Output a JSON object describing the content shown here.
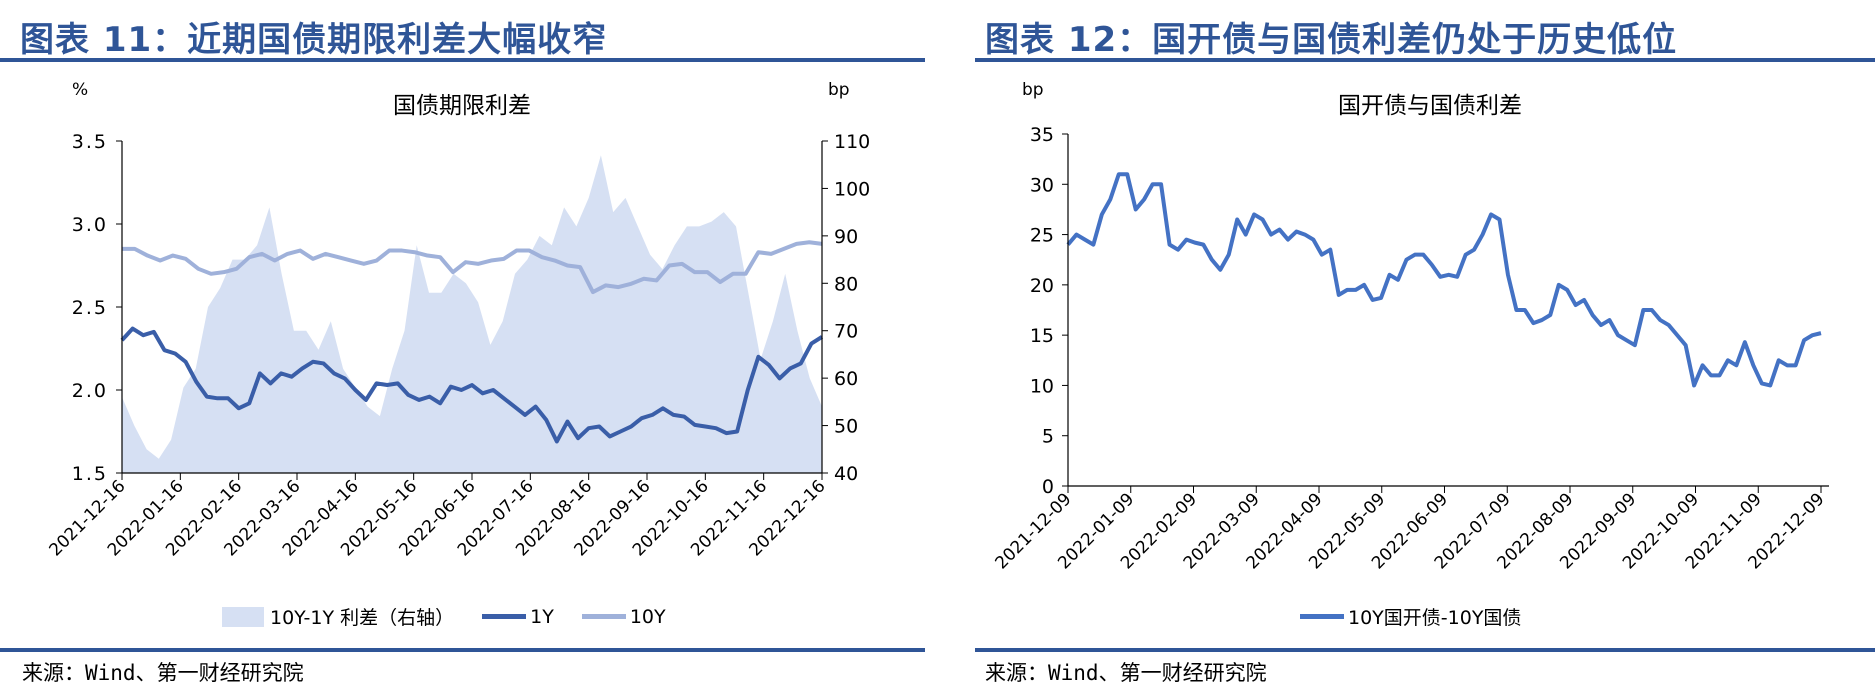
{
  "left": {
    "figure_title": "图表 11：近期国债期限利差大幅收窄",
    "source": "来源：Wind、第一财经研究院"
  },
  "right": {
    "figure_title": "图表 12：国开债与国债利差仍处于历史低位",
    "source": "来源：Wind、第一财经研究院"
  },
  "colors": {
    "title": "#2f5597",
    "spread": "#d6e0f3",
    "y1": "#3a5ea8",
    "y10": "#9fb1da",
    "cdb": "#4472c4"
  },
  "chart_data": [
    {
      "type": "line",
      "title": "国债期限利差",
      "ylabel": "%",
      "y2label": "bp",
      "ylim": [
        1.5,
        3.5
      ],
      "yticks": [
        "3.5",
        "3.0",
        "2.5",
        "2.0",
        "1.5"
      ],
      "y2lim": [
        40,
        110
      ],
      "y2ticks": [
        "110",
        "100",
        "90",
        "80",
        "70",
        "60",
        "50",
        "40"
      ],
      "xticks": [
        "2021-12-16",
        "2022-01-16",
        "2022-02-16",
        "2022-03-16",
        "2022-04-16",
        "2022-05-16",
        "2022-06-16",
        "2022-07-16",
        "2022-08-16",
        "2022-09-16",
        "2022-10-16",
        "2022-11-16",
        "2022-12-16"
      ],
      "legend": [
        "10Y-1Y 利差（右轴）",
        "1Y",
        "10Y"
      ],
      "series": [
        {
          "name": "10Y-1Y 利差（右轴）",
          "type": "area",
          "axis": "right",
          "values": [
            56,
            50,
            45,
            43,
            47,
            58,
            62,
            75,
            79,
            85,
            85,
            88,
            96,
            82,
            70,
            70,
            66,
            72,
            62,
            58,
            54,
            52,
            62,
            70,
            88,
            78,
            78,
            82,
            80,
            76,
            67,
            72,
            82,
            85,
            90,
            88,
            96,
            92,
            98,
            107,
            95,
            98,
            92,
            86,
            83,
            88,
            92,
            92,
            93,
            95,
            92,
            78,
            64,
            72,
            82,
            70,
            60,
            54
          ]
        },
        {
          "name": "1Y",
          "axis": "left",
          "values": [
            2.3,
            2.37,
            2.33,
            2.35,
            2.24,
            2.22,
            2.17,
            2.05,
            1.96,
            1.95,
            1.95,
            1.89,
            1.92,
            2.1,
            2.04,
            2.1,
            2.08,
            2.13,
            2.17,
            2.16,
            2.1,
            2.07,
            2.0,
            1.94,
            2.04,
            2.03,
            2.04,
            1.97,
            1.94,
            1.96,
            1.92,
            2.02,
            2.0,
            2.03,
            1.98,
            2.0,
            1.95,
            1.9,
            1.85,
            1.9,
            1.82,
            1.69,
            1.81,
            1.71,
            1.77,
            1.78,
            1.72,
            1.75,
            1.78,
            1.83,
            1.85,
            1.89,
            1.85,
            1.84,
            1.79,
            1.78,
            1.77,
            1.74,
            1.75,
            2.0,
            2.2,
            2.15,
            2.07,
            2.13,
            2.16,
            2.28,
            2.32
          ]
        },
        {
          "name": "10Y",
          "axis": "left",
          "values": [
            2.85,
            2.85,
            2.81,
            2.78,
            2.81,
            2.79,
            2.73,
            2.7,
            2.71,
            2.73,
            2.8,
            2.82,
            2.78,
            2.82,
            2.84,
            2.79,
            2.82,
            2.8,
            2.78,
            2.76,
            2.78,
            2.84,
            2.84,
            2.83,
            2.81,
            2.8,
            2.71,
            2.77,
            2.76,
            2.78,
            2.79,
            2.84,
            2.84,
            2.8,
            2.78,
            2.75,
            2.74,
            2.59,
            2.63,
            2.62,
            2.64,
            2.67,
            2.66,
            2.75,
            2.76,
            2.71,
            2.71,
            2.65,
            2.7,
            2.7,
            2.83,
            2.82,
            2.85,
            2.88,
            2.89,
            2.88
          ]
        }
      ]
    },
    {
      "type": "line",
      "title": "国开债与国债利差",
      "ylabel": "bp",
      "ylim": [
        0,
        35
      ],
      "yticks": [
        "35",
        "30",
        "25",
        "20",
        "15",
        "10",
        "5",
        "0"
      ],
      "xticks": [
        "2021-12-09",
        "2022-01-09",
        "2022-02-09",
        "2022-03-09",
        "2022-04-09",
        "2022-05-09",
        "2022-06-09",
        "2022-07-09",
        "2022-08-09",
        "2022-09-09",
        "2022-10-09",
        "2022-11-09",
        "2022-12-09"
      ],
      "legend": [
        "10Y国开债-10Y国债"
      ],
      "series": [
        {
          "name": "10Y国开债-10Y国债",
          "values": [
            24,
            25,
            24.5,
            24,
            27,
            28.5,
            31,
            31,
            27.5,
            28.5,
            30,
            30,
            24,
            23.5,
            24.5,
            24.2,
            24,
            22.5,
            21.5,
            23,
            26.5,
            25,
            27,
            26.5,
            25,
            25.5,
            24.5,
            25.3,
            25,
            24.5,
            23,
            23.5,
            19,
            19.5,
            19.5,
            20,
            18.5,
            18.7,
            21,
            20.5,
            22.5,
            23,
            23,
            22,
            20.8,
            21,
            20.8,
            23,
            23.5,
            25,
            27,
            26.5,
            21,
            17.5,
            17.5,
            16.2,
            16.5,
            17,
            20,
            19.5,
            18,
            18.5,
            17,
            16,
            16.5,
            15,
            14.5,
            14,
            17.5,
            17.5,
            16.5,
            16,
            15,
            14,
            10,
            12,
            11,
            11,
            12.5,
            12,
            14.3,
            12,
            10.2,
            10,
            12.5,
            12,
            12,
            14.5,
            15,
            15.2
          ]
        }
      ]
    }
  ]
}
